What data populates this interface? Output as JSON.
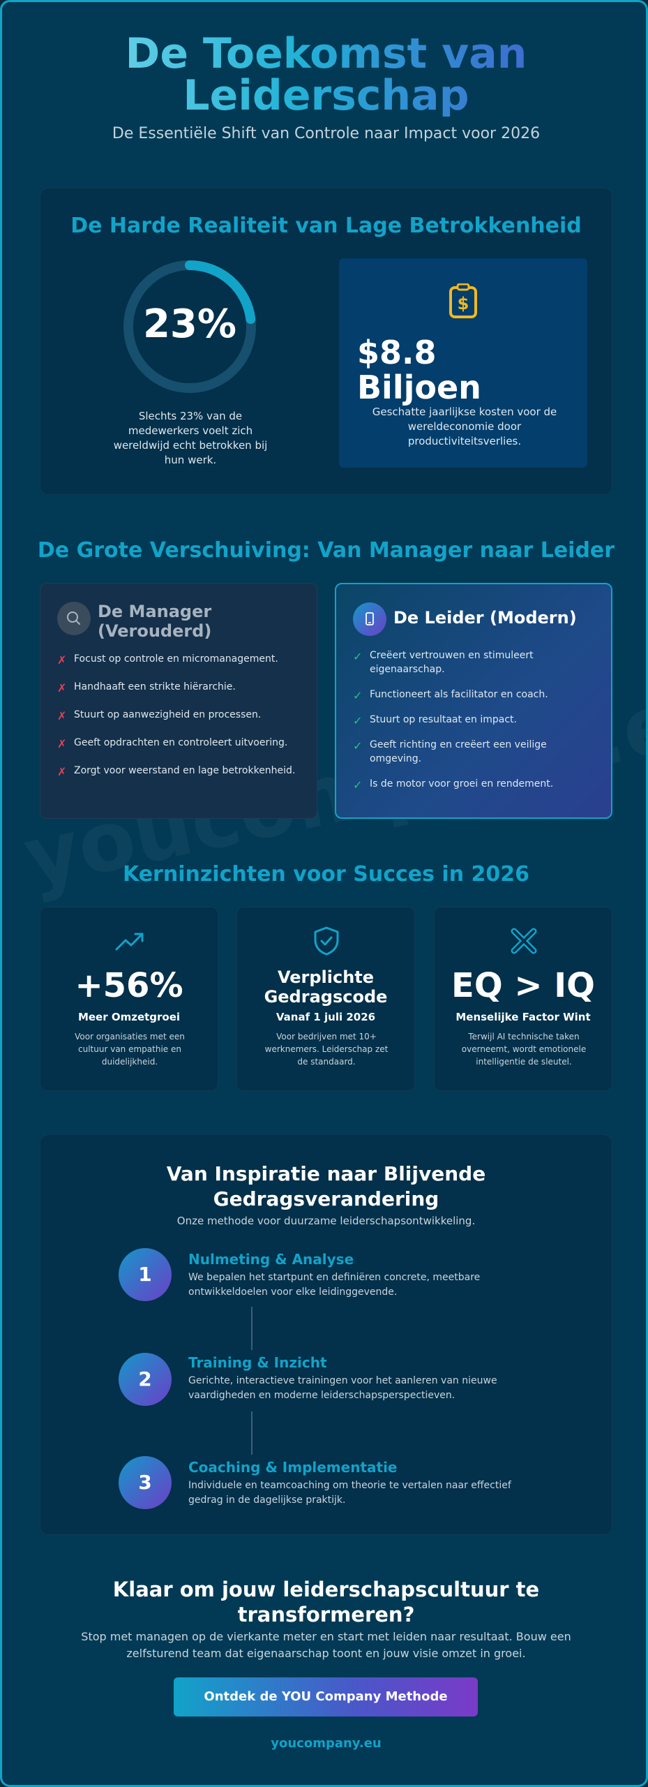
{
  "colors": {
    "accent": "#12a3c9",
    "background": "#023a55",
    "card": "#03304a",
    "cross": "#e0435b",
    "check": "#27c47f",
    "gold": "#f3b81f"
  },
  "hero": {
    "title_line1": "De Toekomst van",
    "title_line2": "Leiderschap",
    "subtitle": "De Essentiële Shift van Controle naar Impact voor 2026"
  },
  "reality": {
    "title": "De Harde Realiteit van Lage Betrokkenheid",
    "engagement": {
      "percent": 23,
      "label": "23%",
      "description": "Slechts 23% van de medewerkers voelt zich wereldwijd echt betrokken bij hun werk."
    },
    "cost": {
      "icon": "dollar-icon",
      "value_line1": "$8.8",
      "value_line2": "Biljoen",
      "description": "Geschatte jaarlijkse kosten voor de wereldeconomie door productiviteitsverlies."
    }
  },
  "shift": {
    "title": "De Grote Verschuiving: Van Manager naar Leider",
    "manager": {
      "icon": "search-icon",
      "title_line1": "De Manager",
      "title_line2": "(Verouderd)",
      "items": [
        "Focust op controle en micromanagement.",
        "Handhaaft een strikte hiërarchie.",
        "Stuurt op aanwezigheid en processen.",
        "Geeft opdrachten en controleert uitvoering.",
        "Zorgt voor weerstand en lage betrokkenheid."
      ]
    },
    "leader": {
      "icon": "mobile-icon",
      "title": "De Leider (Modern)",
      "items": [
        "Creëert vertrouwen en stimuleert eigenaarschap.",
        "Functioneert als facilitator en coach.",
        "Stuurt op resultaat en impact.",
        "Geeft richting en creëert een veilige omgeving.",
        "Is de motor voor groei en rendement."
      ]
    }
  },
  "insights": {
    "title": "Kerninzichten voor Succes in 2026",
    "cards": [
      {
        "icon": "trending-up-icon",
        "big": "+56%",
        "sub": "Meer Omzetgroei",
        "desc": "Voor organisaties met een cultuur van empathie en duidelijkheid."
      },
      {
        "icon": "shield-check-icon",
        "big_line1": "Verplichte",
        "big_line2": "Gedragscode",
        "sub": "Vanaf 1 juli 2026",
        "desc": "Voor bedrijven met 10+ werknemers. Leiderschap zet de standaard."
      },
      {
        "icon": "cross-icon",
        "big": "EQ > IQ",
        "sub": "Menselijke Factor Wint",
        "desc": "Terwijl AI technische taken overneemt, wordt emotionele intelligentie de sleutel."
      }
    ]
  },
  "method": {
    "title_line1": "Van Inspiratie naar Blijvende",
    "title_line2": "Gedragsverandering",
    "subtitle": "Onze methode voor duurzame leiderschapsontwikkeling.",
    "steps": [
      {
        "number": "1",
        "title": "Nulmeting & Analyse",
        "desc": "We bepalen het startpunt en definiëren concrete, meetbare ontwikkeldoelen voor elke leidinggevende."
      },
      {
        "number": "2",
        "title": "Training & Inzicht",
        "desc": "Gerichte, interactieve trainingen voor het aanleren van nieuwe vaardigheden en moderne leiderschapsperspectieven."
      },
      {
        "number": "3",
        "title": "Coaching & Implementatie",
        "desc": "Individuele en teamcoaching om theorie te vertalen naar effectief gedrag in de dagelijkse praktijk."
      }
    ]
  },
  "cta": {
    "title_line1": "Klaar om jouw leiderschapscultuur te",
    "title_line2": "transformeren?",
    "desc": "Stop met managen op de vierkante meter en start met leiden naar resultaat. Bouw een zelfsturend team dat eigenaarschap toont en jouw visie omzet in groei.",
    "button_label": "Ontdek de YOU Company Methode"
  },
  "footer": {
    "brand": "youcompany.eu"
  }
}
